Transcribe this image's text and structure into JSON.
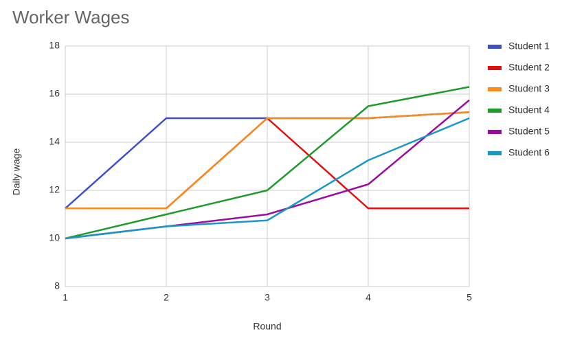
{
  "chart_data": {
    "type": "line",
    "title": "Worker Wages",
    "x_label": "Round",
    "y_label": "Daily wage",
    "x": [
      1,
      2,
      3,
      4,
      5
    ],
    "series": [
      {
        "name": "Student 1",
        "color": "#3b4fc9",
        "values": [
          11.25,
          15,
          15,
          15,
          15.25
        ]
      },
      {
        "name": "Student 2",
        "color": "#e01010",
        "values": [
          11.25,
          11.25,
          15,
          11.25,
          11.25
        ]
      },
      {
        "name": "Student 3",
        "color": "#f98a1c",
        "values": [
          11.25,
          11.25,
          15,
          15,
          15.25
        ]
      },
      {
        "name": "Student 4",
        "color": "#1f9a2b",
        "values": [
          10,
          11,
          12,
          15.5,
          16.3
        ]
      },
      {
        "name": "Student 5",
        "color": "#9a0d9e",
        "values": [
          10,
          10.5,
          11,
          12.25,
          15.75
        ]
      },
      {
        "name": "Student 6",
        "color": "#1b97c6",
        "values": [
          10,
          10.5,
          10.75,
          13.25,
          15
        ]
      }
    ],
    "xlim": [
      1,
      5
    ],
    "xticks": [
      1,
      2,
      3,
      4,
      5
    ],
    "ylim": [
      8,
      18
    ],
    "yticks": [
      8,
      10,
      12,
      14,
      16,
      18
    ],
    "grid": true,
    "legend": "right"
  }
}
